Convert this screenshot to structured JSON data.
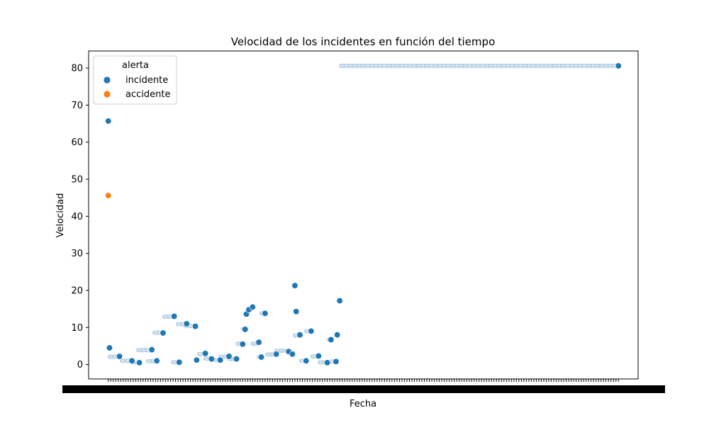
{
  "chart_data": {
    "type": "scatter",
    "title": "Velocidad de los incidentes en función del tiempo",
    "xlabel": "Fecha",
    "ylabel": "Velocidad",
    "ylim": [
      -3.9,
      84.6
    ],
    "yticks": [
      0,
      10,
      20,
      30,
      40,
      50,
      60,
      70,
      80
    ],
    "x_tick_labels_legible": false,
    "grid": false,
    "legend": {
      "title": "alerta",
      "placement": "top-left",
      "entries": [
        {
          "name": "incidente",
          "color": "#1f77b4"
        },
        {
          "name": "accidente",
          "color": "#ff7f0e"
        }
      ]
    },
    "series": [
      {
        "name": "incidente",
        "color": "#1f77b4",
        "points": [
          {
            "x": 0.0,
            "y": 65.7
          },
          {
            "x": 0.1,
            "y": 4.5
          },
          {
            "x": 0.9,
            "y": 2.2
          },
          {
            "x": 1.9,
            "y": 1.0
          },
          {
            "x": 2.5,
            "y": 0.5
          },
          {
            "x": 3.5,
            "y": 4.0
          },
          {
            "x": 3.9,
            "y": 1.0
          },
          {
            "x": 4.4,
            "y": 8.5
          },
          {
            "x": 5.3,
            "y": 13.0
          },
          {
            "x": 5.7,
            "y": 0.6
          },
          {
            "x": 6.3,
            "y": 11.0
          },
          {
            "x": 7.0,
            "y": 10.3
          },
          {
            "x": 7.1,
            "y": 1.2
          },
          {
            "x": 7.8,
            "y": 3.0
          },
          {
            "x": 8.3,
            "y": 1.5
          },
          {
            "x": 9.0,
            "y": 1.2
          },
          {
            "x": 9.7,
            "y": 2.2
          },
          {
            "x": 10.3,
            "y": 1.5
          },
          {
            "x": 10.8,
            "y": 5.5
          },
          {
            "x": 11.0,
            "y": 9.5
          },
          {
            "x": 11.1,
            "y": 13.6
          },
          {
            "x": 11.3,
            "y": 14.8
          },
          {
            "x": 11.6,
            "y": 15.5
          },
          {
            "x": 12.1,
            "y": 6.0
          },
          {
            "x": 12.3,
            "y": 2.0
          },
          {
            "x": 12.6,
            "y": 13.8
          },
          {
            "x": 13.5,
            "y": 2.8
          },
          {
            "x": 14.5,
            "y": 3.5
          },
          {
            "x": 14.8,
            "y": 2.8
          },
          {
            "x": 15.0,
            "y": 21.3
          },
          {
            "x": 15.1,
            "y": 14.3
          },
          {
            "x": 15.4,
            "y": 8.0
          },
          {
            "x": 15.9,
            "y": 1.0
          },
          {
            "x": 16.3,
            "y": 9.0
          },
          {
            "x": 16.9,
            "y": 2.3
          },
          {
            "x": 17.6,
            "y": 0.5
          },
          {
            "x": 17.9,
            "y": 6.7
          },
          {
            "x": 18.3,
            "y": 0.8
          },
          {
            "x": 18.4,
            "y": 8.0
          },
          {
            "x": 18.6,
            "y": 17.2
          },
          {
            "x": 41.0,
            "y": 80.6
          }
        ],
        "runs": [
          {
            "x_start": 0.1,
            "x_end": 0.8,
            "y": 2.1
          },
          {
            "x_start": 1.1,
            "x_end": 1.8,
            "y": 1.0
          },
          {
            "x_start": 1.9,
            "x_end": 2.4,
            "y": 0.6
          },
          {
            "x_start": 2.4,
            "x_end": 3.4,
            "y": 3.9
          },
          {
            "x_start": 3.2,
            "x_end": 3.8,
            "y": 0.9
          },
          {
            "x_start": 3.7,
            "x_end": 4.3,
            "y": 8.6
          },
          {
            "x_start": 4.5,
            "x_end": 5.2,
            "y": 12.9
          },
          {
            "x_start": 5.2,
            "x_end": 5.6,
            "y": 0.6
          },
          {
            "x_start": 5.6,
            "x_end": 6.2,
            "y": 10.9
          },
          {
            "x_start": 6.2,
            "x_end": 6.9,
            "y": 10.4
          },
          {
            "x_start": 7.3,
            "x_end": 7.7,
            "y": 2.8
          },
          {
            "x_start": 7.8,
            "x_end": 8.2,
            "y": 1.6
          },
          {
            "x_start": 8.3,
            "x_end": 8.9,
            "y": 1.2
          },
          {
            "x_start": 9.0,
            "x_end": 9.6,
            "y": 2.1
          },
          {
            "x_start": 9.7,
            "x_end": 10.2,
            "y": 1.5
          },
          {
            "x_start": 10.4,
            "x_end": 10.7,
            "y": 5.6
          },
          {
            "x_start": 10.8,
            "x_end": 10.9,
            "y": 9.6
          },
          {
            "x_start": 11.2,
            "x_end": 11.5,
            "y": 15.0
          },
          {
            "x_start": 11.6,
            "x_end": 12.0,
            "y": 5.6
          },
          {
            "x_start": 12.1,
            "x_end": 12.3,
            "y": 2.0
          },
          {
            "x_start": 12.3,
            "x_end": 12.5,
            "y": 13.8
          },
          {
            "x_start": 12.8,
            "x_end": 13.4,
            "y": 2.7
          },
          {
            "x_start": 13.5,
            "x_end": 14.4,
            "y": 3.7
          },
          {
            "x_start": 14.9,
            "x_end": 15.0,
            "y": 21.3
          },
          {
            "x_start": 15.0,
            "x_end": 15.3,
            "y": 7.8
          },
          {
            "x_start": 15.5,
            "x_end": 15.8,
            "y": 1.0
          },
          {
            "x_start": 15.9,
            "x_end": 16.2,
            "y": 9.0
          },
          {
            "x_start": 16.4,
            "x_end": 16.8,
            "y": 2.2
          },
          {
            "x_start": 17.0,
            "x_end": 17.5,
            "y": 0.6
          },
          {
            "x_start": 17.7,
            "x_end": 17.8,
            "y": 6.7
          },
          {
            "x_start": 17.9,
            "x_end": 18.2,
            "y": 0.8
          },
          {
            "x_start": 18.5,
            "x_end": 18.6,
            "y": 17.2
          },
          {
            "x_start": 18.7,
            "x_end": 40.9,
            "y": 80.6
          }
        ]
      },
      {
        "name": "accidente",
        "color": "#ff7f0e",
        "points": [
          {
            "x": 0.0,
            "y": 45.6
          }
        ]
      }
    ]
  }
}
